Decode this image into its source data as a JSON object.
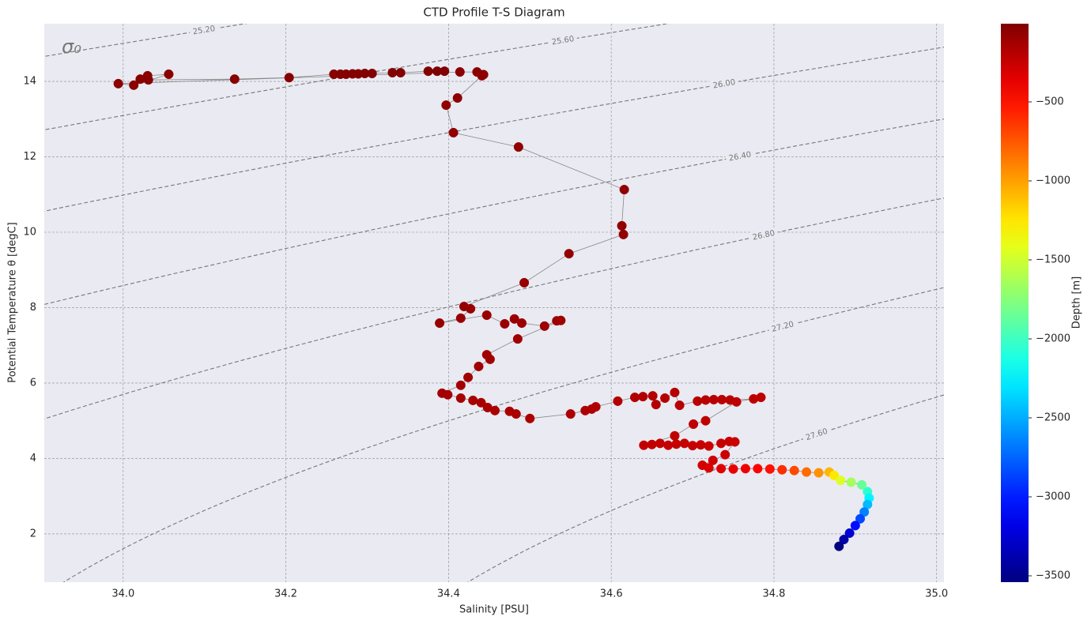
{
  "chart_data": {
    "type": "scatter",
    "title": "CTD Profile T-S Diagram",
    "xlabel": "Salinity [PSU]",
    "ylabel": "Potential Temperature θ [degC]",
    "annotation": "σ₀",
    "x": [
      34.395,
      34.386,
      34.375,
      34.341,
      34.331,
      34.306,
      34.297,
      34.289,
      34.282,
      34.274,
      34.267,
      34.259,
      34.204,
      34.137,
      34.031,
      34.021,
      34.03,
      34.056,
      34.013,
      33.994,
      34.414,
      34.435,
      34.443,
      34.441,
      34.411,
      34.397,
      34.406,
      34.486,
      34.616,
      34.613,
      34.615,
      34.548,
      34.493,
      34.419,
      34.427,
      34.415,
      34.389,
      34.447,
      34.469,
      34.481,
      34.49,
      34.518,
      34.533,
      34.538,
      34.485,
      34.447,
      34.451,
      34.437,
      34.424,
      34.415,
      34.392,
      34.399,
      34.415,
      34.43,
      34.44,
      34.448,
      34.457,
      34.475,
      34.483,
      34.5,
      34.55,
      34.568,
      34.576,
      34.581,
      34.608,
      34.629,
      34.639,
      34.651,
      34.655,
      34.666,
      34.678,
      34.684,
      34.706,
      34.716,
      34.726,
      34.736,
      34.746,
      34.775,
      34.784,
      34.754,
      34.716,
      34.701,
      34.678,
      34.64,
      34.65,
      34.66,
      34.67,
      34.68,
      34.69,
      34.7,
      34.71,
      34.72,
      34.735,
      34.745,
      34.752,
      34.74,
      34.725,
      34.712,
      34.72,
      34.735,
      34.75,
      34.765,
      34.78,
      34.795,
      34.81,
      34.825,
      34.84,
      34.855,
      34.868,
      34.874,
      34.882,
      34.895,
      34.908,
      34.915,
      34.917,
      34.915,
      34.911,
      34.906,
      34.9,
      34.893,
      34.886,
      34.88
    ],
    "values": [
      14.27,
      14.27,
      14.27,
      14.23,
      14.23,
      14.21,
      14.21,
      14.2,
      14.2,
      14.19,
      14.19,
      14.19,
      14.1,
      14.06,
      14.04,
      14.06,
      14.15,
      14.19,
      13.9,
      13.94,
      14.25,
      14.25,
      14.18,
      14.15,
      13.56,
      13.37,
      12.64,
      12.26,
      11.13,
      10.17,
      9.94,
      9.43,
      8.66,
      8.03,
      7.97,
      7.72,
      7.59,
      7.8,
      7.57,
      7.7,
      7.59,
      7.51,
      7.65,
      7.66,
      7.17,
      6.75,
      6.63,
      6.44,
      6.15,
      5.94,
      5.73,
      5.69,
      5.6,
      5.54,
      5.48,
      5.35,
      5.27,
      5.25,
      5.18,
      5.06,
      5.18,
      5.27,
      5.31,
      5.37,
      5.52,
      5.62,
      5.64,
      5.66,
      5.43,
      5.6,
      5.75,
      5.41,
      5.52,
      5.55,
      5.56,
      5.56,
      5.55,
      5.58,
      5.62,
      5.5,
      5.0,
      4.91,
      4.6,
      4.35,
      4.37,
      4.4,
      4.35,
      4.38,
      4.4,
      4.34,
      4.36,
      4.33,
      4.4,
      4.45,
      4.44,
      4.1,
      3.95,
      3.82,
      3.75,
      3.73,
      3.72,
      3.73,
      3.73,
      3.72,
      3.7,
      3.68,
      3.64,
      3.62,
      3.64,
      3.55,
      3.42,
      3.37,
      3.3,
      3.12,
      2.95,
      2.78,
      2.58,
      2.4,
      2.22,
      2.02,
      1.85,
      1.67
    ],
    "depth": [
      -5,
      -8,
      -10,
      -12,
      -14,
      -16,
      -18,
      -20,
      -22,
      -24,
      -26,
      -28,
      -30,
      -32,
      -34,
      -36,
      -38,
      -40,
      -42,
      -44,
      -46,
      -48,
      -50,
      -52,
      -55,
      -58,
      -61,
      -64,
      -67,
      -70,
      -73,
      -76,
      -79,
      -82,
      -85,
      -88,
      -91,
      -94,
      -97,
      -100,
      -103,
      -106,
      -109,
      -112,
      -115,
      -118,
      -121,
      -124,
      -127,
      -130,
      -133,
      -136,
      -139,
      -142,
      -145,
      -148,
      -151,
      -154,
      -157,
      -160,
      -163,
      -166,
      -169,
      -172,
      -175,
      -178,
      -181,
      -184,
      -187,
      -190,
      -193,
      -196,
      -199,
      -202,
      -205,
      -208,
      -211,
      -214,
      -217,
      -220,
      -223,
      -226,
      -229,
      -232,
      -235,
      -238,
      -241,
      -244,
      -247,
      -250,
      -253,
      -256,
      -259,
      -262,
      -265,
      -270,
      -280,
      -290,
      -310,
      -340,
      -370,
      -400,
      -450,
      -500,
      -600,
      -700,
      -820,
      -950,
      -1080,
      -1250,
      -1450,
      -1650,
      -1850,
      -2050,
      -2250,
      -2450,
      -2650,
      -2850,
      -3050,
      -3250,
      -3400,
      -3540
    ],
    "colormap": "jet",
    "line_color": "#888888",
    "xlim": [
      33.903,
      35.009
    ],
    "ylim": [
      0.72,
      15.53
    ],
    "xticks": [
      {
        "value": 34,
        "label": "34.0"
      },
      34.2,
      34.4,
      34.6,
      34.8,
      {
        "value": 35,
        "label": "35.0"
      }
    ],
    "yticks": [
      2,
      4,
      6,
      8,
      10,
      12,
      14
    ],
    "grid": true,
    "colorbar": {
      "label": "Depth [m]",
      "lim": [
        -3540,
        -5
      ],
      "ticks": [
        {
          "value": -500,
          "label": "−500"
        },
        {
          "value": -1000,
          "label": "−1000"
        },
        {
          "value": -1500,
          "label": "−1500"
        },
        {
          "value": -2000,
          "label": "−2000"
        },
        {
          "value": -2500,
          "label": "−2500"
        },
        {
          "value": -3000,
          "label": "−3000"
        },
        {
          "value": -3500,
          "label": "−3500"
        }
      ]
    },
    "contours": {
      "levels": [
        25.2,
        25.6,
        26.0,
        26.4,
        26.8,
        27.2,
        27.6
      ],
      "labels": [
        "25.20",
        "25.60",
        "26.00",
        "26.40",
        "26.80",
        "27.20",
        "27.60"
      ],
      "color": "#777777"
    }
  }
}
